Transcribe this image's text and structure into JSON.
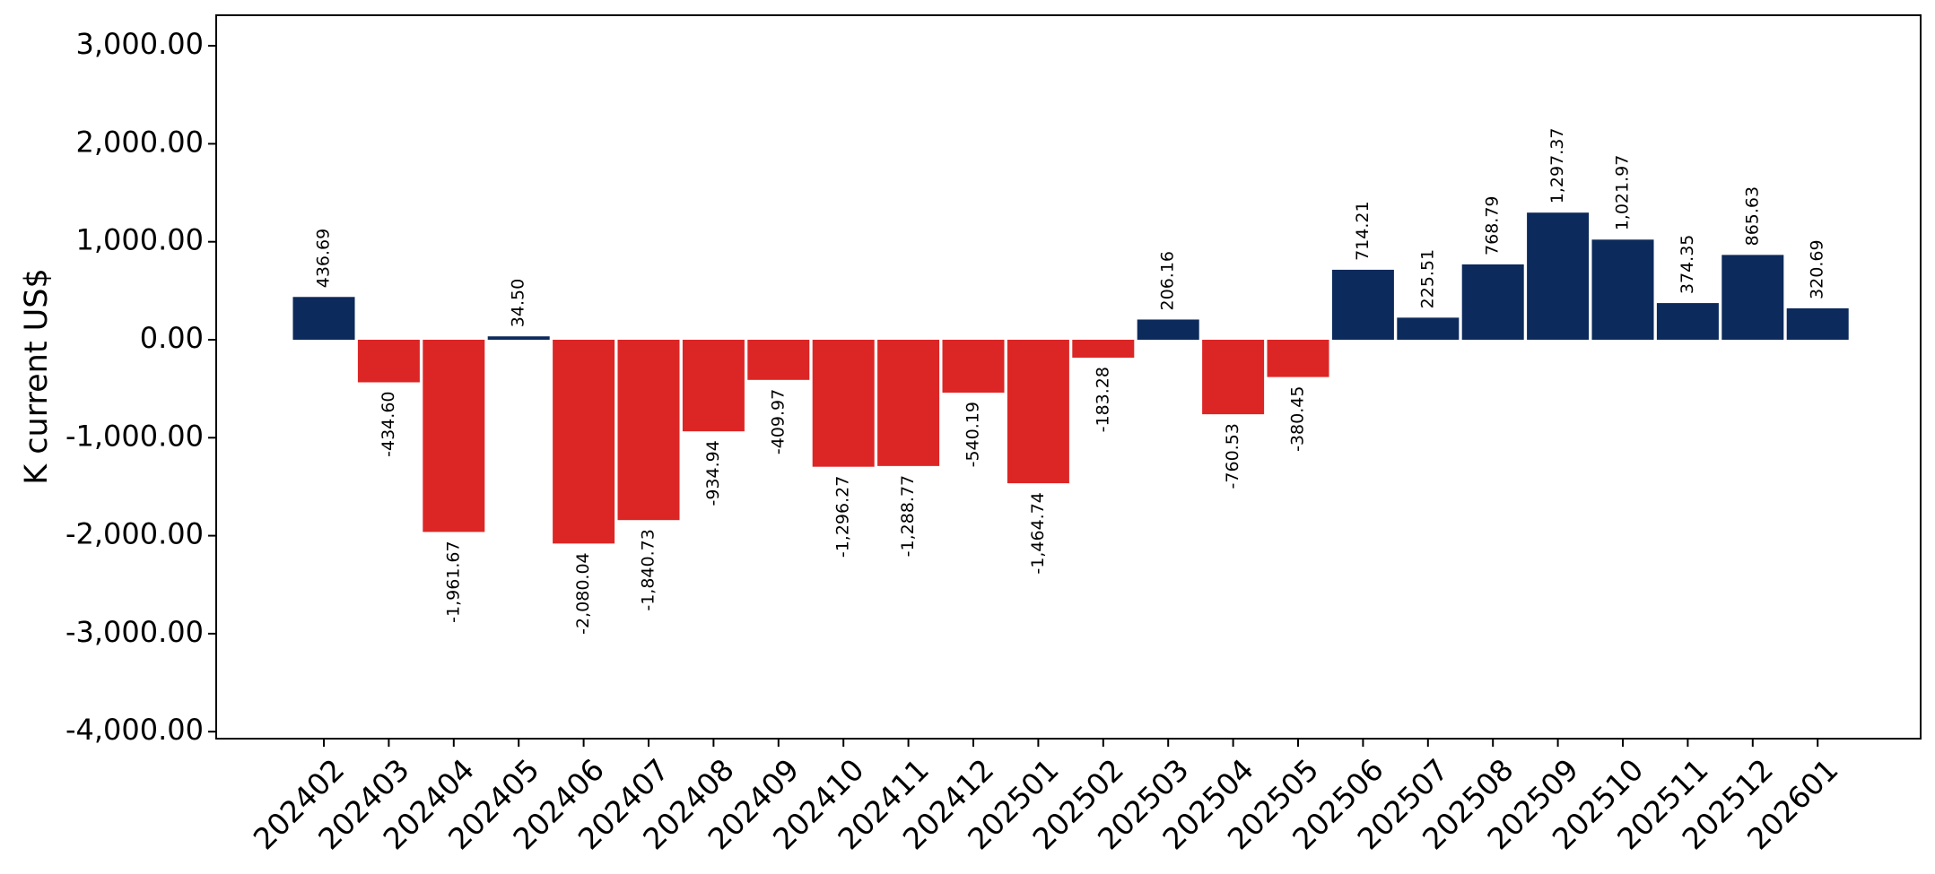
{
  "chart_data": {
    "type": "bar",
    "title": "",
    "xlabel": "",
    "ylabel": "K current US$",
    "ylim": [
      -4000,
      3000
    ],
    "yticks": [
      -4000,
      -3000,
      -2000,
      -1000,
      0,
      1000,
      2000,
      3000
    ],
    "ytick_labels": [
      "-4,000.00",
      "-3,000.00",
      "-2,000.00",
      "-1,000.00",
      "0.00",
      "1,000.00",
      "2,000.00",
      "3,000.00"
    ],
    "grid": false,
    "legend": "none",
    "colors": {
      "positive": "#0c2a5b",
      "negative": "#dc2626"
    },
    "categories": [
      "202402",
      "202403",
      "202404",
      "202405",
      "202406",
      "202407",
      "202408",
      "202409",
      "202410",
      "202411",
      "202412",
      "202501",
      "202502",
      "202503",
      "202504",
      "202505",
      "202506",
      "202507",
      "202508",
      "202509",
      "202510",
      "202511",
      "202512",
      "202601"
    ],
    "values": [
      436.69,
      -434.6,
      -1961.67,
      34.5,
      -2080.04,
      -1840.73,
      -934.94,
      -409.97,
      -1296.27,
      -1288.77,
      -540.19,
      -1464.74,
      -183.28,
      206.16,
      -760.53,
      -380.45,
      714.21,
      225.51,
      768.79,
      1297.37,
      1021.97,
      374.35,
      865.63,
      320.69
    ],
    "value_labels": [
      "436.69",
      "-434.60",
      "-1,961.67",
      "34.50",
      "-2,080.04",
      "-1,840.73",
      "-934.94",
      "-409.97",
      "-1,296.27",
      "-1,288.77",
      "-540.19",
      "-1,464.74",
      "-183.28",
      "206.16",
      "-760.53",
      "-380.45",
      "714.21",
      "225.51",
      "768.79",
      "1,297.37",
      "1,021.97",
      "374.35",
      "865.63",
      "320.69"
    ]
  }
}
